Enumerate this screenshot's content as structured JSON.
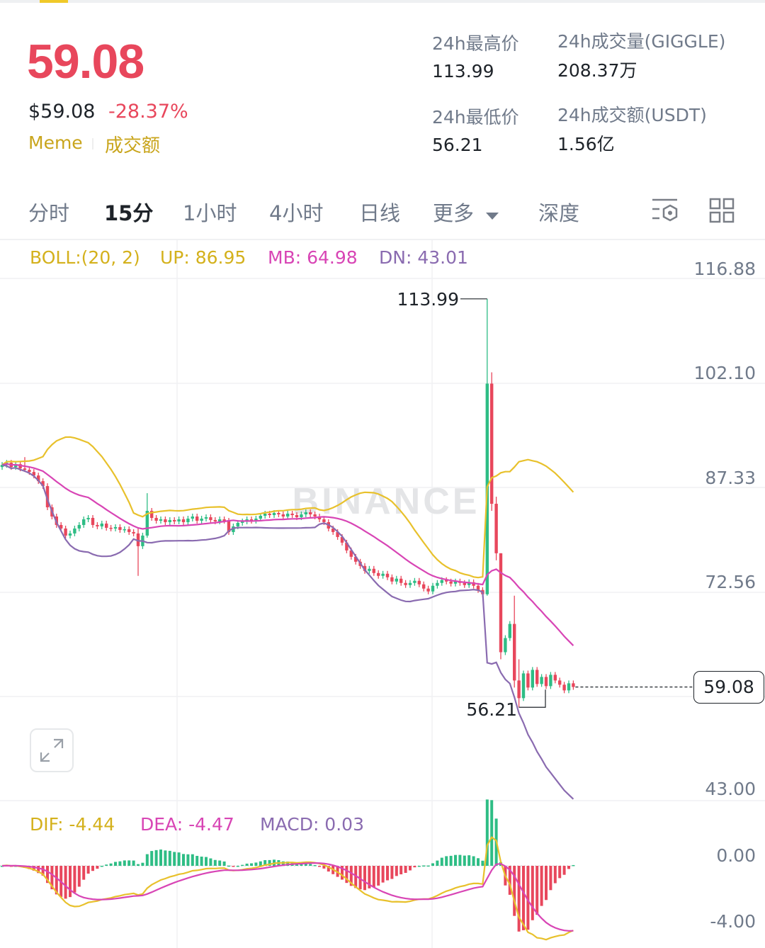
{
  "header": {
    "price": "59.08",
    "usd_price": "$59.08",
    "change_pct": "-28.37%",
    "tags": [
      "Meme",
      "成交额"
    ]
  },
  "stats": [
    {
      "label": "24h最高价",
      "value": "113.99"
    },
    {
      "label": "24h成交量(GIGGLE)",
      "value": "208.37万"
    },
    {
      "label": "24h最低价",
      "value": "56.21"
    },
    {
      "label": "24h成交额(USDT)",
      "value": "1.56亿"
    }
  ],
  "tabs": [
    {
      "label": "分时",
      "active": false
    },
    {
      "label": "15分",
      "active": true
    },
    {
      "label": "1小时",
      "active": false
    },
    {
      "label": "4小时",
      "active": false
    },
    {
      "label": "日线",
      "active": false
    },
    {
      "label": "更多",
      "active": false
    },
    {
      "label": "深度",
      "active": false
    }
  ],
  "toolbar_icons": [
    "indicator-settings-icon",
    "layout-grid-icon"
  ],
  "boll": {
    "label": "BOLL:(20, 2)",
    "up": "UP: 86.95",
    "mb": "MB: 64.98",
    "dn": "DN: 43.01"
  },
  "macd": {
    "dif": "DIF: -4.44",
    "dea": "DEA: -4.47",
    "macd": "MACD: 0.03"
  },
  "watermark": "BINANCE",
  "colors": {
    "up": "#2ebd85",
    "down": "#e8475c",
    "boll_up": "#e8c12c",
    "boll_mb": "#d845b5",
    "boll_dn": "#8a6bb0",
    "accent": "#f0c929"
  },
  "chart_data": {
    "type": "candlestick",
    "interval": "15分",
    "price_axis_ticks": [
      "116.88",
      "102.10",
      "87.33",
      "72.56",
      "43.00"
    ],
    "price_range": [
      43.0,
      116.88
    ],
    "macd_axis_ticks": [
      "0.00",
      "-4.00"
    ],
    "current_price": "59.08",
    "high_label": "113.99",
    "low_label": "56.21",
    "first_open": 90.2,
    "closes": [
      90.5,
      90.8,
      90.2,
      90.6,
      90,
      89.8,
      89.5,
      89,
      88.2,
      87.5,
      84.5,
      83.2,
      82,
      81.5,
      80.5,
      80.8,
      81.5,
      82,
      82.8,
      83,
      82,
      81.8,
      82.2,
      81.6,
      81.5,
      81.7,
      81.3,
      81.4,
      81,
      80.8,
      79,
      80.5,
      84,
      83,
      82.6,
      82.8,
      82.4,
      82.7,
      82.5,
      82.8,
      82.4,
      82.9,
      83.2,
      82.6,
      82.9,
      83.1,
      82.7,
      82.5,
      82.8,
      82.6,
      81,
      81.8,
      82.3,
      82.5,
      82.8,
      82.6,
      82.9,
      83.3,
      83.6,
      83.4,
      83.7,
      83.5,
      83.2,
      83.6,
      83.4,
      83.1,
      83.5,
      83.8,
      83.5,
      83.2,
      82.8,
      82.4,
      81.5,
      81,
      80.3,
      79.5,
      78.4,
      77.5,
      76.8,
      76.2,
      75.5,
      75.8,
      75.2,
      74.8,
      75.1,
      74.6,
      74,
      74.4,
      73.8,
      73.5,
      73.8,
      74.1,
      73.6,
      73,
      72.6,
      73.4,
      73.8,
      74.2,
      74,
      73.7,
      74,
      73.8,
      73.5,
      73.9,
      73.4,
      72.8,
      72.2,
      102,
      85,
      78,
      64,
      66,
      68,
      60,
      57.5,
      61,
      59,
      61.5,
      59.5,
      60.5,
      59.2,
      60.8,
      60,
      59.4,
      58.6,
      59.6,
      59.08
    ],
    "wick_overrides": {
      "5": [
        91.6,
        89.5
      ],
      "30": [
        81.5,
        74.8
      ],
      "32": [
        86.5,
        80.2
      ],
      "107": [
        113.99,
        72
      ],
      "108": [
        103.6,
        84
      ],
      "109": [
        86,
        77
      ],
      "110": [
        78,
        63
      ],
      "113": [
        72,
        59
      ],
      "114": [
        63,
        56.21
      ]
    }
  }
}
